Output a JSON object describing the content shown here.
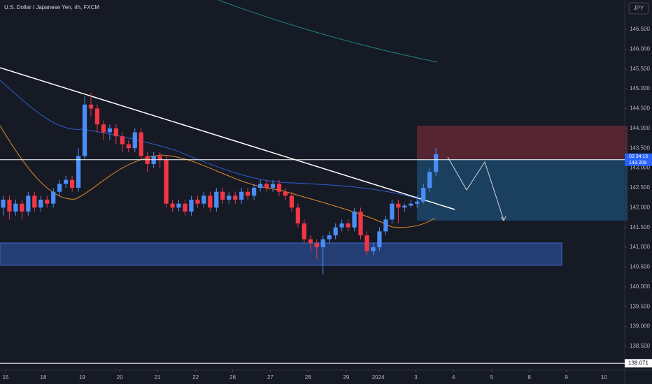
{
  "chart_data": {
    "type": "candlestick",
    "title": "U.S. Dollar / Japanese Yen, 4h, FXCM",
    "currency": "JPY",
    "countdown": "02:34:15",
    "current_price": 143.209,
    "low_line": 138.071,
    "up_color": "#4a8df7",
    "down_color": "#f23645",
    "grid": false,
    "xlim": [
      -0.5,
      99.1
    ],
    "xticks": [
      {
        "value": 0.4,
        "label": "15"
      },
      {
        "value": 6.4,
        "label": "18"
      },
      {
        "value": 12.6,
        "label": "19"
      },
      {
        "value": 18.6,
        "label": "20"
      },
      {
        "value": 24.6,
        "label": "21"
      },
      {
        "value": 30.7,
        "label": "22"
      },
      {
        "value": 36.6,
        "label": "26"
      },
      {
        "value": 42.6,
        "label": "27"
      },
      {
        "value": 48.6,
        "label": "28"
      },
      {
        "value": 54.7,
        "label": "29"
      },
      {
        "value": 59.8,
        "label": "2024"
      },
      {
        "value": 65.8,
        "label": "3"
      },
      {
        "value": 71.8,
        "label": "4"
      },
      {
        "value": 77.9,
        "label": "5"
      },
      {
        "value": 83.9,
        "label": "8"
      },
      {
        "value": 89.8,
        "label": "9"
      },
      {
        "value": 95.8,
        "label": "10"
      }
    ],
    "ylim": [
      137.9,
      147.24
    ],
    "yticks": [
      {
        "value": 138.5,
        "label": "138.500"
      },
      {
        "value": 139.0,
        "label": "139.000"
      },
      {
        "value": 139.5,
        "label": "139.500"
      },
      {
        "value": 140.0,
        "label": "140.000"
      },
      {
        "value": 140.5,
        "label": "140.500"
      },
      {
        "value": 141.0,
        "label": "141.000"
      },
      {
        "value": 141.5,
        "label": "141.500"
      },
      {
        "value": 142.0,
        "label": "142.000"
      },
      {
        "value": 142.5,
        "label": "142.500"
      },
      {
        "value": 143.0,
        "label": "143.000"
      },
      {
        "value": 143.5,
        "label": "143.500"
      },
      {
        "value": 144.0,
        "label": "144.000"
      },
      {
        "value": 144.5,
        "label": "144.500"
      },
      {
        "value": 145.0,
        "label": "145.000"
      },
      {
        "value": 145.5,
        "label": "145.500"
      },
      {
        "value": 146.0,
        "label": "146.000"
      },
      {
        "value": 146.5,
        "label": "146.500"
      }
    ],
    "open": [
      142.0,
      142.2,
      141.9,
      142.1,
      141.9,
      142.3,
      142.0,
      142.2,
      142.1,
      142.4,
      142.6,
      142.7,
      142.5,
      143.3,
      144.6,
      144.5,
      144.1,
      143.9,
      144.0,
      143.8,
      143.6,
      143.5,
      143.9,
      143.3,
      143.1,
      143.3,
      143.2,
      142.1,
      142.0,
      142.1,
      141.9,
      142.2,
      142.1,
      142.3,
      142.0,
      142.4,
      142.2,
      142.3,
      142.2,
      142.4,
      142.3,
      142.5,
      142.6,
      142.5,
      142.6,
      142.4,
      142.3,
      142.0,
      141.6,
      141.2,
      141.1,
      141.0,
      141.2,
      141.3,
      141.5,
      141.6,
      141.5,
      141.9,
      141.3,
      140.9,
      141.0,
      141.4,
      141.7,
      142.1,
      142.0,
      142.05,
      142.1,
      142.15,
      142.5,
      142.9
    ],
    "high": [
      142.3,
      142.3,
      142.2,
      142.2,
      142.4,
      142.4,
      142.3,
      142.3,
      142.5,
      142.7,
      142.8,
      142.8,
      143.5,
      144.8,
      144.9,
      144.6,
      144.2,
      144.1,
      144.1,
      143.9,
      143.7,
      144.0,
      144.0,
      143.4,
      143.4,
      143.4,
      143.3,
      142.2,
      142.2,
      142.2,
      142.3,
      142.3,
      142.4,
      142.4,
      142.5,
      142.5,
      142.4,
      142.4,
      142.5,
      142.5,
      142.6,
      142.7,
      142.7,
      142.7,
      142.7,
      142.5,
      142.4,
      142.1,
      141.7,
      141.3,
      141.2,
      141.3,
      141.4,
      141.6,
      141.7,
      141.7,
      142.0,
      142.0,
      141.4,
      141.1,
      141.5,
      141.8,
      142.2,
      142.2,
      142.1,
      142.2,
      142.3,
      142.6,
      143.0,
      143.5
    ],
    "low": [
      141.8,
      141.7,
      141.8,
      141.7,
      141.8,
      141.9,
      141.9,
      142.0,
      142.0,
      142.3,
      142.5,
      142.4,
      142.4,
      143.2,
      144.3,
      143.9,
      143.7,
      143.7,
      143.6,
      143.4,
      143.4,
      143.4,
      143.2,
      142.9,
      143.0,
      143.0,
      142.0,
      141.9,
      141.9,
      141.8,
      141.8,
      142.0,
      142.0,
      141.9,
      141.9,
      142.1,
      142.1,
      142.1,
      142.1,
      142.2,
      142.2,
      142.4,
      142.4,
      142.4,
      142.3,
      142.2,
      141.9,
      141.5,
      141.1,
      140.9,
      140.7,
      140.3,
      141.1,
      141.2,
      141.4,
      141.4,
      141.4,
      141.2,
      140.8,
      140.8,
      140.9,
      141.3,
      141.6,
      141.6,
      141.9,
      142.0,
      142.0,
      142.1,
      142.4,
      142.8
    ],
    "close": [
      142.2,
      141.9,
      142.1,
      141.9,
      142.3,
      142.0,
      142.2,
      142.1,
      142.4,
      142.6,
      142.7,
      142.5,
      143.3,
      144.6,
      144.5,
      144.1,
      143.9,
      144.0,
      143.8,
      143.6,
      143.5,
      143.9,
      143.3,
      143.1,
      143.3,
      143.2,
      142.1,
      142.0,
      142.1,
      141.9,
      142.2,
      142.1,
      142.3,
      142.0,
      142.4,
      142.2,
      142.3,
      142.2,
      142.4,
      142.3,
      142.5,
      142.6,
      142.5,
      142.6,
      142.4,
      142.3,
      142.0,
      141.6,
      141.2,
      141.1,
      141.0,
      141.2,
      141.3,
      141.5,
      141.6,
      141.5,
      141.9,
      141.3,
      140.9,
      141.0,
      141.4,
      141.7,
      142.1,
      142.0,
      142.05,
      142.1,
      142.15,
      142.5,
      142.9,
      143.35
    ]
  }
}
